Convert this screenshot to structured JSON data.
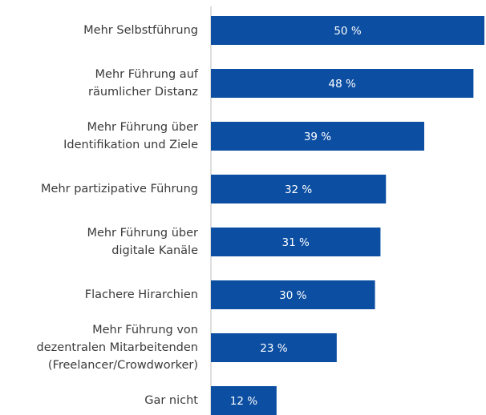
{
  "chart_data": {
    "type": "bar",
    "orientation": "horizontal",
    "categories": [
      [
        "Mehr Selbstführung"
      ],
      [
        "Mehr Führung auf",
        "räumlicher Distanz"
      ],
      [
        "Mehr Führung über",
        "Identifikation und Ziele"
      ],
      [
        "Mehr partizipative Führung"
      ],
      [
        "Mehr Führung über",
        "digitale Kanäle"
      ],
      [
        "Flachere Hirarchien"
      ],
      [
        "Mehr Führung von",
        "dezentralen Mitarbeitenden",
        "(Freelancer/Crowdworker)"
      ],
      [
        "Gar nicht"
      ]
    ],
    "values": [
      50,
      48,
      39,
      32,
      31,
      30,
      23,
      12
    ],
    "value_labels": [
      "50 %",
      "48 %",
      "39 %",
      "32 %",
      "31 %",
      "30 %",
      "23 %",
      "12 %"
    ],
    "color": "#0b4ea2"
  }
}
